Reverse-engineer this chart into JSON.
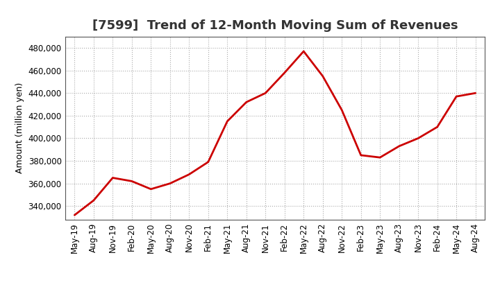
{
  "title": "[7599]  Trend of 12-Month Moving Sum of Revenues",
  "ylabel": "Amount (million yen)",
  "line_color": "#cc0000",
  "background_color": "#ffffff",
  "plot_bg_color": "#ffffff",
  "grid_color": "#aaaaaa",
  "ylim": [
    328000,
    490000
  ],
  "yticks": [
    340000,
    360000,
    380000,
    400000,
    420000,
    440000,
    460000,
    480000
  ],
  "x_labels": [
    "May-19",
    "Aug-19",
    "Nov-19",
    "Feb-20",
    "May-20",
    "Aug-20",
    "Nov-20",
    "Feb-21",
    "May-21",
    "Aug-21",
    "Nov-21",
    "Feb-22",
    "May-22",
    "Aug-22",
    "Nov-22",
    "Feb-23",
    "May-23",
    "Aug-23",
    "Nov-23",
    "Feb-24",
    "May-24",
    "Aug-24"
  ],
  "values": [
    332000,
    345000,
    365000,
    362000,
    355000,
    360000,
    368000,
    379000,
    415000,
    432000,
    440000,
    458000,
    477000,
    455000,
    425000,
    385000,
    383000,
    393000,
    400000,
    410000,
    437000,
    440000
  ],
  "title_fontsize": 13,
  "ylabel_fontsize": 9,
  "tick_fontsize": 8.5,
  "line_width": 2.0
}
